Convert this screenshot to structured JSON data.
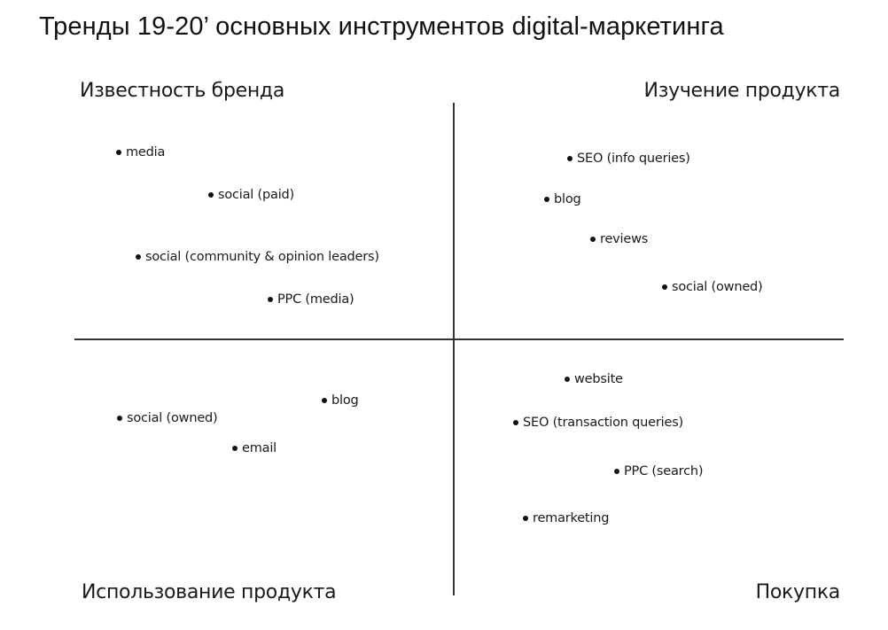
{
  "title": "Тренды 19-20’ основных инструментов digital-маркетинга",
  "quadrants": {
    "top_left": {
      "label": "Известность бренда",
      "items": [
        "media",
        "social (paid)",
        "social (community & opinion leaders)",
        "PPC (media)"
      ]
    },
    "top_right": {
      "label": "Изучение продукта",
      "items": [
        "SEO (info queries)",
        "blog",
        "reviews",
        "social (owned)"
      ]
    },
    "bottom_left": {
      "label": "Использование продукта",
      "items": [
        "blog",
        "social (owned)",
        "email"
      ]
    },
    "bottom_right": {
      "label": "Покупка",
      "items": [
        "website",
        "SEO (transaction queries)",
        "PPC (search)",
        "remarketing"
      ]
    }
  }
}
